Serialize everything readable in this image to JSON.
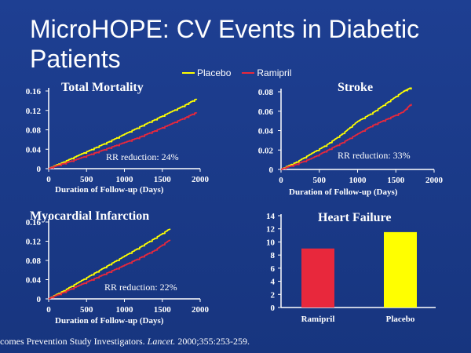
{
  "slide": {
    "title": "MicroHOPE: CV Events in Diabetic Patients",
    "citation_prefix": "comes Prevention Study Investigators. ",
    "citation_journal": "Lancet.",
    "citation_suffix": " 2000;355:253-259."
  },
  "legend": {
    "items": [
      {
        "label": "Placebo",
        "color": "#ffff00"
      },
      {
        "label": "Ramipril",
        "color": "#e8283c"
      }
    ]
  },
  "colors": {
    "background": "#1a3a8a",
    "placebo": "#ffff00",
    "ramipril": "#e8283c",
    "text": "#ffffff"
  },
  "chart_data": [
    {
      "type": "line",
      "title": "Total Mortality",
      "xlabel": "Duration of Follow-up (Days)",
      "ylabel": "",
      "xlim": [
        0,
        2000
      ],
      "ylim": [
        0,
        0.16
      ],
      "x_ticks": [
        "0",
        "500",
        "1000",
        "1500",
        "2000"
      ],
      "y_ticks": [
        "0",
        "0.04",
        "0.08",
        "0.12",
        "0.16"
      ],
      "annotation": "RR reduction:  24%",
      "series": [
        {
          "name": "Placebo",
          "x": [
            0,
            200,
            400,
            600,
            800,
            1000,
            1200,
            1400,
            1600,
            1800,
            1950
          ],
          "y": [
            0,
            0.013,
            0.027,
            0.041,
            0.055,
            0.07,
            0.085,
            0.1,
            0.115,
            0.13,
            0.143
          ]
        },
        {
          "name": "Ramipril",
          "x": [
            0,
            200,
            400,
            600,
            800,
            1000,
            1200,
            1400,
            1600,
            1800,
            1950
          ],
          "y": [
            0,
            0.01,
            0.02,
            0.031,
            0.042,
            0.053,
            0.064,
            0.077,
            0.09,
            0.104,
            0.115
          ]
        }
      ]
    },
    {
      "type": "line",
      "title": "Stroke",
      "xlabel": "Duration of Follow-up (Days)",
      "ylabel": "",
      "xlim": [
        0,
        2000
      ],
      "ylim": [
        0,
        0.08
      ],
      "x_ticks": [
        "0",
        "500",
        "1000",
        "1500",
        "2000"
      ],
      "y_ticks": [
        "0",
        "0.02",
        "0.04",
        "0.06",
        "0.08"
      ],
      "annotation": "RR reduction:  33%",
      "series": [
        {
          "name": "Placebo",
          "x": [
            0,
            200,
            400,
            600,
            800,
            1000,
            1200,
            1400,
            1600,
            1700
          ],
          "y": [
            0,
            0.007,
            0.016,
            0.025,
            0.036,
            0.049,
            0.058,
            0.069,
            0.08,
            0.084
          ]
        },
        {
          "name": "Ramipril",
          "x": [
            0,
            200,
            400,
            600,
            800,
            1000,
            1200,
            1400,
            1600,
            1700
          ],
          "y": [
            0,
            0.005,
            0.011,
            0.019,
            0.027,
            0.036,
            0.045,
            0.052,
            0.059,
            0.067
          ]
        }
      ]
    },
    {
      "type": "line",
      "title": "Myocardial Infarction",
      "xlabel": "Duration of Follow-up (Days)",
      "ylabel": "",
      "xlim": [
        0,
        2000
      ],
      "ylim": [
        0,
        0.16
      ],
      "x_ticks": [
        "0",
        "500",
        "1000",
        "1500",
        "2000"
      ],
      "y_ticks": [
        "0",
        "0.04",
        "0.08",
        "0.12",
        "0.16"
      ],
      "annotation": "RR reduction:  22%",
      "series": [
        {
          "name": "Placebo",
          "x": [
            0,
            200,
            400,
            600,
            800,
            1000,
            1200,
            1400,
            1600
          ],
          "y": [
            0,
            0.016,
            0.034,
            0.052,
            0.07,
            0.088,
            0.106,
            0.125,
            0.145
          ]
        },
        {
          "name": "Ramipril",
          "x": [
            0,
            200,
            400,
            600,
            800,
            1000,
            1200,
            1400,
            1600
          ],
          "y": [
            0,
            0.013,
            0.027,
            0.041,
            0.055,
            0.069,
            0.084,
            0.1,
            0.122
          ]
        }
      ]
    },
    {
      "type": "bar",
      "title": "Heart Failure",
      "xlabel": "",
      "ylabel": "",
      "categories": [
        "Ramipril",
        "Placebo"
      ],
      "values": [
        9.0,
        11.5
      ],
      "bar_colors": [
        "#e8283c",
        "#ffff00"
      ],
      "ylim": [
        0,
        14
      ],
      "y_ticks": [
        "0",
        "2",
        "4",
        "6",
        "8",
        "10",
        "12",
        "14"
      ]
    }
  ]
}
